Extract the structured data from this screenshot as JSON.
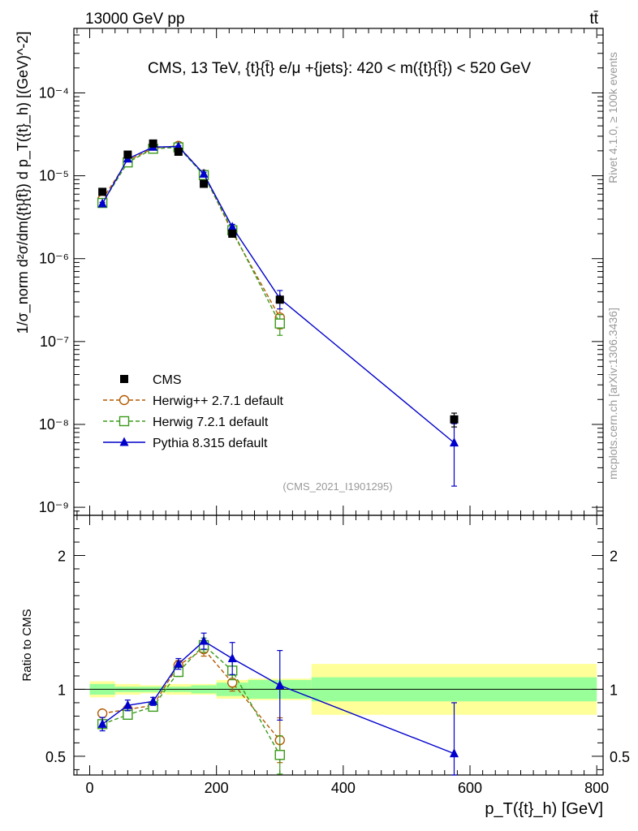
{
  "header": {
    "energy": "13000 GeV pp",
    "process": "tt̄"
  },
  "side_labels": {
    "rivet": "Rivet 4.1.0, ≥ 100k events",
    "mcplots": "mcplots.cern.ch [arXiv:1306.3436]"
  },
  "chart_data": {
    "type": "line",
    "title": "CMS, 13 TeV, {t}{t̄} e/μ +{jets}: 420 < m({t}{t̄}) < 520 GeV",
    "analysis_id": "(CMS_2021_I1901295)",
    "xlabel": "p_T({t}_h) [GeV]",
    "ylabel": "1/σ_norm d²σ/dm({t}{t̄}) d p_T({t}_h) [(GeV)^-2]",
    "ratio_ylabel": "Ratio to CMS",
    "xlim": [
      -25,
      810
    ],
    "ylim_log": [
      8e-10,
      0.0006
    ],
    "ratio_ylim": [
      0.36,
      2.3
    ],
    "x_ticks": [
      0,
      200,
      400,
      600,
      800
    ],
    "y_ticks": [
      {
        "v": 1e-09,
        "label": "10⁻⁹"
      },
      {
        "v": 1e-08,
        "label": "10⁻⁸"
      },
      {
        "v": 1e-07,
        "label": "10⁻⁷"
      },
      {
        "v": 1e-06,
        "label": "10⁻⁶"
      },
      {
        "v": 1e-05,
        "label": "10⁻⁵"
      },
      {
        "v": 0.0001,
        "label": "10⁻⁴"
      }
    ],
    "ratio_ticks": [
      0.5,
      1,
      2
    ],
    "x": [
      20,
      60,
      100,
      140,
      180,
      225,
      300,
      575
    ],
    "bin_edges": [
      0,
      40,
      80,
      120,
      160,
      200,
      250,
      350,
      800
    ],
    "cms": {
      "name": "CMS",
      "values": [
        6.4e-06,
        1.8e-05,
        2.45e-05,
        1.95e-05,
        8e-06,
        2e-06,
        3.2e-07,
        1.15e-08
      ],
      "stat_rel": [
        0.04,
        0.02,
        0.02,
        0.02,
        0.03,
        0.05,
        0.07,
        0.09
      ],
      "total_rel": [
        0.06,
        0.04,
        0.03,
        0.04,
        0.04,
        0.07,
        0.08,
        0.19
      ]
    },
    "series": [
      {
        "name": "Herwig++ 2.7.1 default",
        "color": "#b35900",
        "marker": "circle",
        "dash": "5,3",
        "values": [
          5.2e-06,
          1.52e-05,
          2.15e-05,
          2.3e-05,
          1.04e-05,
          2.1e-06,
          1.95e-07,
          null
        ],
        "err_rel": [
          0.03,
          0.03,
          0.02,
          0.03,
          0.04,
          0.06,
          0.27,
          null
        ],
        "ratio": [
          0.82,
          0.85,
          0.88,
          1.18,
          1.3,
          1.05,
          0.62,
          null
        ]
      },
      {
        "name": "Herwig 7.2.1 default",
        "color": "#3a9a1a",
        "marker": "square",
        "dash": "5,3",
        "values": [
          4.7e-06,
          1.45e-05,
          2.12e-05,
          2.2e-05,
          1.02e-05,
          2.2e-06,
          1.65e-07,
          null
        ],
        "err_rel": [
          0.03,
          0.03,
          0.02,
          0.03,
          0.04,
          0.06,
          0.28,
          null
        ],
        "ratio": [
          0.74,
          0.81,
          0.87,
          1.13,
          1.33,
          1.14,
          0.51,
          null
        ]
      },
      {
        "name": "Pythia 8.315 default",
        "color": "#0000cc",
        "marker": "triangle",
        "dash": "",
        "values": [
          4.6e-06,
          1.6e-05,
          2.22e-05,
          2.25e-05,
          1.05e-05,
          2.4e-06,
          3.3e-07,
          6e-09
        ],
        "err_rel": [
          0.04,
          0.03,
          0.02,
          0.03,
          0.05,
          0.08,
          0.25,
          0.7
        ],
        "ratio": [
          0.74,
          0.88,
          0.91,
          1.19,
          1.36,
          1.23,
          1.03,
          0.52
        ],
        "ratio_err": [
          0.05,
          0.04,
          0.03,
          0.04,
          0.06,
          0.12,
          0.26,
          0.38
        ]
      }
    ]
  }
}
